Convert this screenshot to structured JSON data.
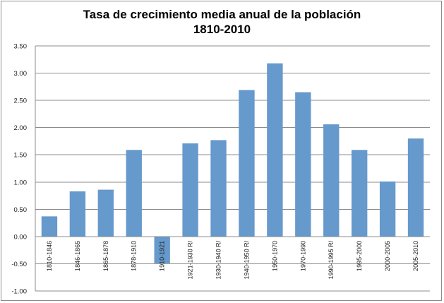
{
  "chart_data": {
    "type": "bar",
    "title": "Tasa de crecimiento media anual de la población",
    "subtitle": "1810-2010",
    "xlabel": "",
    "ylabel": "",
    "ylim": [
      -1.0,
      3.5
    ],
    "yticks": [
      "3.50",
      "3.00",
      "2.50",
      "2.00",
      "1.50",
      "1.00",
      "0.50",
      "0.00",
      "-0.50",
      "-1.00"
    ],
    "grid": true,
    "legend": "none",
    "bar_color": "#6699cc",
    "grid_color": "#8c8c8c",
    "categories": [
      "1810-1846",
      "1846-1865",
      "1865-1878",
      "1878-1910",
      "1910-1921",
      "1921-1930 R/",
      "1930-1940 R/",
      "1940-1950 R/",
      "1950-1970",
      "1970-1990",
      "1990-1995 R/",
      "1995-2000",
      "2000-2005",
      "2005-2010"
    ],
    "values": [
      0.37,
      0.83,
      0.86,
      1.59,
      -0.49,
      1.71,
      1.77,
      2.69,
      3.18,
      2.65,
      2.06,
      1.59,
      1.01,
      1.8
    ]
  }
}
